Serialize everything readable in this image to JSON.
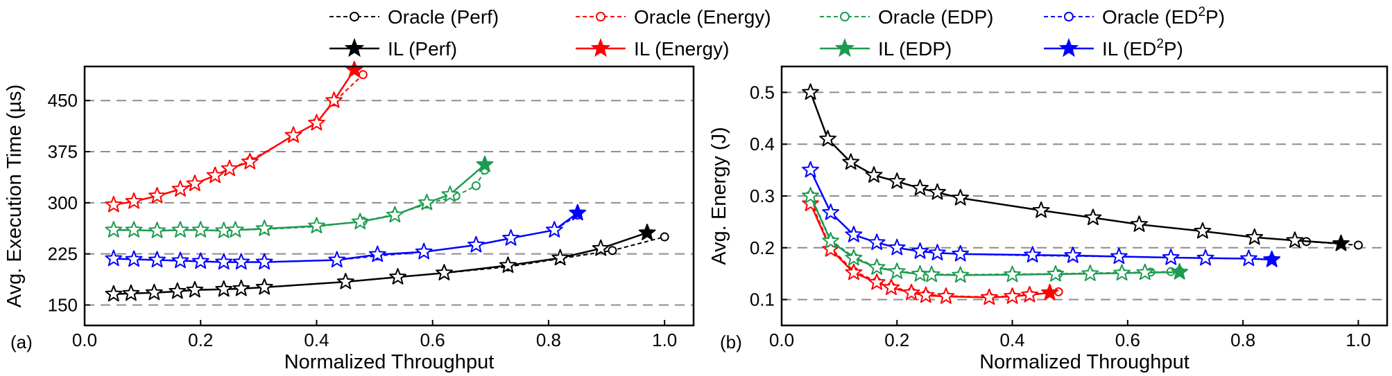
{
  "legend": {
    "items": [
      {
        "label": "Oracle (Perf)",
        "color": "#000000",
        "style": "oracle"
      },
      {
        "label": "Oracle (Energy)",
        "color": "#ff0000",
        "style": "oracle"
      },
      {
        "label": "Oracle (EDP)",
        "color": "#1e9b50",
        "style": "oracle"
      },
      {
        "label": "Oracle (ED",
        "sup": "2",
        "tail": "P)",
        "color": "#0000ff",
        "style": "oracle"
      },
      {
        "label": "IL (Perf)",
        "color": "#000000",
        "style": "il"
      },
      {
        "label": "IL (Energy)",
        "color": "#ff0000",
        "style": "il"
      },
      {
        "label": "IL (EDP)",
        "color": "#1e9b50",
        "style": "il"
      },
      {
        "label": "IL (ED",
        "sup": "2",
        "tail": "P)",
        "color": "#0000ff",
        "style": "il"
      }
    ],
    "placement": "top, two rows"
  },
  "chart_data": [
    {
      "type": "line",
      "panel_label": "(a)",
      "xlabel": "Normalized Throughput",
      "ylabel": "Avg. Execution Time (µs)",
      "xlim": [
        0,
        1.05
      ],
      "ylim": [
        120,
        500
      ],
      "xticks": [
        "0.0",
        "0.2",
        "0.4",
        "0.6",
        "0.8",
        "1.0"
      ],
      "xtick_values": [
        0,
        0.2,
        0.4,
        0.6,
        0.8,
        1.0
      ],
      "yticks": [
        "150",
        "225",
        "300",
        "375",
        "450"
      ],
      "ytick_values": [
        150,
        225,
        300,
        375,
        450
      ],
      "grid": "horizontal dashed",
      "series": [
        {
          "name": "Oracle (Perf)",
          "color": "#000000",
          "x": [
            0.05,
            0.08,
            0.12,
            0.16,
            0.19,
            0.24,
            0.27,
            0.31,
            0.45,
            0.54,
            0.62,
            0.73,
            0.82,
            0.91,
            1.0
          ],
          "y": [
            166,
            167,
            168,
            170,
            172,
            173,
            174,
            176,
            184,
            191,
            197,
            206,
            218,
            230,
            250
          ]
        },
        {
          "name": "IL (Perf)",
          "color": "#000000",
          "x": [
            0.05,
            0.08,
            0.12,
            0.16,
            0.19,
            0.24,
            0.27,
            0.31,
            0.45,
            0.54,
            0.62,
            0.73,
            0.82,
            0.89,
            0.97
          ],
          "y": [
            166,
            167,
            168,
            170,
            172,
            173,
            174,
            176,
            184,
            191,
            197,
            208,
            219,
            233,
            256
          ]
        },
        {
          "name": "Oracle (Energy)",
          "color": "#ff0000",
          "x": [
            0.05,
            0.085,
            0.125,
            0.165,
            0.19,
            0.225,
            0.25,
            0.285,
            0.36,
            0.4,
            0.43,
            0.48
          ],
          "y": [
            297,
            302,
            310,
            320,
            328,
            340,
            350,
            362,
            398,
            418,
            448,
            488
          ]
        },
        {
          "name": "IL (Energy)",
          "color": "#ff0000",
          "x": [
            0.05,
            0.085,
            0.125,
            0.165,
            0.19,
            0.225,
            0.25,
            0.285,
            0.36,
            0.4,
            0.43,
            0.465
          ],
          "y": [
            297,
            302,
            310,
            320,
            328,
            340,
            350,
            360,
            399,
            417,
            450,
            495
          ]
        },
        {
          "name": "Oracle (EDP)",
          "color": "#1e9b50",
          "x": [
            0.05,
            0.085,
            0.125,
            0.165,
            0.2,
            0.24,
            0.26,
            0.31,
            0.4,
            0.48,
            0.535,
            0.59,
            0.64,
            0.675,
            0.69
          ],
          "y": [
            260,
            260,
            259,
            260,
            260,
            259,
            260,
            261,
            265,
            273,
            283,
            298,
            310,
            325,
            348
          ]
        },
        {
          "name": "IL (EDP)",
          "color": "#1e9b50",
          "x": [
            0.05,
            0.085,
            0.125,
            0.165,
            0.2,
            0.24,
            0.26,
            0.31,
            0.4,
            0.475,
            0.535,
            0.59,
            0.63,
            0.69
          ],
          "y": [
            260,
            260,
            259,
            260,
            260,
            259,
            260,
            262,
            266,
            272,
            282,
            300,
            312,
            356
          ]
        },
        {
          "name": "Oracle (ED²P)",
          "color": "#0000ff",
          "x": [
            0.05,
            0.085,
            0.125,
            0.165,
            0.2,
            0.24,
            0.27,
            0.31,
            0.435,
            0.505,
            0.585,
            0.675,
            0.735,
            0.81,
            0.85
          ],
          "y": [
            218,
            217,
            216,
            215,
            214,
            213,
            213,
            213,
            216,
            222,
            228,
            238,
            248,
            260,
            282
          ]
        },
        {
          "name": "IL (ED²P)",
          "color": "#0000ff",
          "x": [
            0.05,
            0.085,
            0.125,
            0.165,
            0.2,
            0.24,
            0.27,
            0.31,
            0.435,
            0.505,
            0.585,
            0.675,
            0.735,
            0.81,
            0.85
          ],
          "y": [
            218,
            217,
            216,
            215,
            214,
            213,
            213,
            213,
            216,
            224,
            228,
            238,
            248,
            260,
            285
          ]
        }
      ]
    },
    {
      "type": "line",
      "panel_label": "(b)",
      "xlabel": "Normalized Throughput",
      "ylabel": "Avg. Energy (J)",
      "xlim": [
        0,
        1.05
      ],
      "ylim": [
        0.05,
        0.55
      ],
      "xticks": [
        "0.0",
        "0.2",
        "0.4",
        "0.6",
        "0.8",
        "1.0"
      ],
      "xtick_values": [
        0,
        0.2,
        0.4,
        0.6,
        0.8,
        1.0
      ],
      "yticks": [
        "0.1",
        "0.2",
        "0.3",
        "0.4",
        "0.5"
      ],
      "ytick_values": [
        0.1,
        0.2,
        0.3,
        0.4,
        0.5
      ],
      "grid": "horizontal dashed",
      "series": [
        {
          "name": "Oracle (Perf)",
          "color": "#000000",
          "x": [
            0.05,
            0.08,
            0.12,
            0.16,
            0.2,
            0.24,
            0.27,
            0.31,
            0.45,
            0.54,
            0.62,
            0.73,
            0.82,
            0.91,
            1.0
          ],
          "y": [
            0.5,
            0.41,
            0.365,
            0.34,
            0.328,
            0.315,
            0.307,
            0.296,
            0.272,
            0.258,
            0.245,
            0.232,
            0.22,
            0.212,
            0.205
          ]
        },
        {
          "name": "IL (Perf)",
          "color": "#000000",
          "x": [
            0.05,
            0.08,
            0.12,
            0.16,
            0.2,
            0.24,
            0.27,
            0.31,
            0.45,
            0.54,
            0.62,
            0.73,
            0.82,
            0.89,
            0.97
          ],
          "y": [
            0.5,
            0.41,
            0.365,
            0.34,
            0.328,
            0.315,
            0.307,
            0.296,
            0.272,
            0.258,
            0.245,
            0.232,
            0.22,
            0.214,
            0.208
          ]
        },
        {
          "name": "Oracle (Energy)",
          "color": "#ff0000",
          "x": [
            0.05,
            0.085,
            0.125,
            0.165,
            0.19,
            0.225,
            0.25,
            0.285,
            0.36,
            0.4,
            0.43,
            0.48
          ],
          "y": [
            0.29,
            0.2,
            0.155,
            0.135,
            0.125,
            0.115,
            0.11,
            0.107,
            0.105,
            0.107,
            0.11,
            0.115
          ]
        },
        {
          "name": "IL (Energy)",
          "color": "#ff0000",
          "x": [
            0.05,
            0.085,
            0.125,
            0.165,
            0.19,
            0.225,
            0.25,
            0.285,
            0.36,
            0.4,
            0.43,
            0.465
          ],
          "y": [
            0.285,
            0.197,
            0.152,
            0.133,
            0.123,
            0.113,
            0.108,
            0.106,
            0.104,
            0.106,
            0.109,
            0.113
          ]
        },
        {
          "name": "Oracle (EDP)",
          "color": "#1e9b50",
          "x": [
            0.05,
            0.085,
            0.125,
            0.165,
            0.2,
            0.24,
            0.26,
            0.31,
            0.4,
            0.48,
            0.535,
            0.59,
            0.64,
            0.675,
            0.69
          ],
          "y": [
            0.302,
            0.215,
            0.182,
            0.163,
            0.155,
            0.15,
            0.149,
            0.148,
            0.149,
            0.15,
            0.151,
            0.152,
            0.153,
            0.154,
            0.155
          ]
        },
        {
          "name": "IL (EDP)",
          "color": "#1e9b50",
          "x": [
            0.05,
            0.085,
            0.125,
            0.165,
            0.2,
            0.24,
            0.26,
            0.31,
            0.4,
            0.475,
            0.535,
            0.59,
            0.63,
            0.69
          ],
          "y": [
            0.3,
            0.213,
            0.18,
            0.162,
            0.154,
            0.149,
            0.148,
            0.147,
            0.148,
            0.149,
            0.15,
            0.151,
            0.152,
            0.153
          ]
        },
        {
          "name": "Oracle (ED²P)",
          "color": "#0000ff",
          "x": [
            0.05,
            0.085,
            0.125,
            0.165,
            0.2,
            0.24,
            0.27,
            0.31,
            0.435,
            0.505,
            0.585,
            0.675,
            0.735,
            0.81,
            0.85
          ],
          "y": [
            0.35,
            0.268,
            0.225,
            0.21,
            0.2,
            0.193,
            0.19,
            0.188,
            0.185,
            0.184,
            0.183,
            0.181,
            0.18,
            0.179,
            0.178
          ]
        },
        {
          "name": "IL (ED²P)",
          "color": "#0000ff",
          "x": [
            0.05,
            0.085,
            0.125,
            0.165,
            0.2,
            0.24,
            0.27,
            0.31,
            0.435,
            0.505,
            0.585,
            0.675,
            0.735,
            0.81,
            0.85
          ],
          "y": [
            0.35,
            0.268,
            0.225,
            0.21,
            0.2,
            0.193,
            0.19,
            0.188,
            0.186,
            0.185,
            0.183,
            0.181,
            0.18,
            0.179,
            0.177
          ]
        }
      ]
    }
  ]
}
